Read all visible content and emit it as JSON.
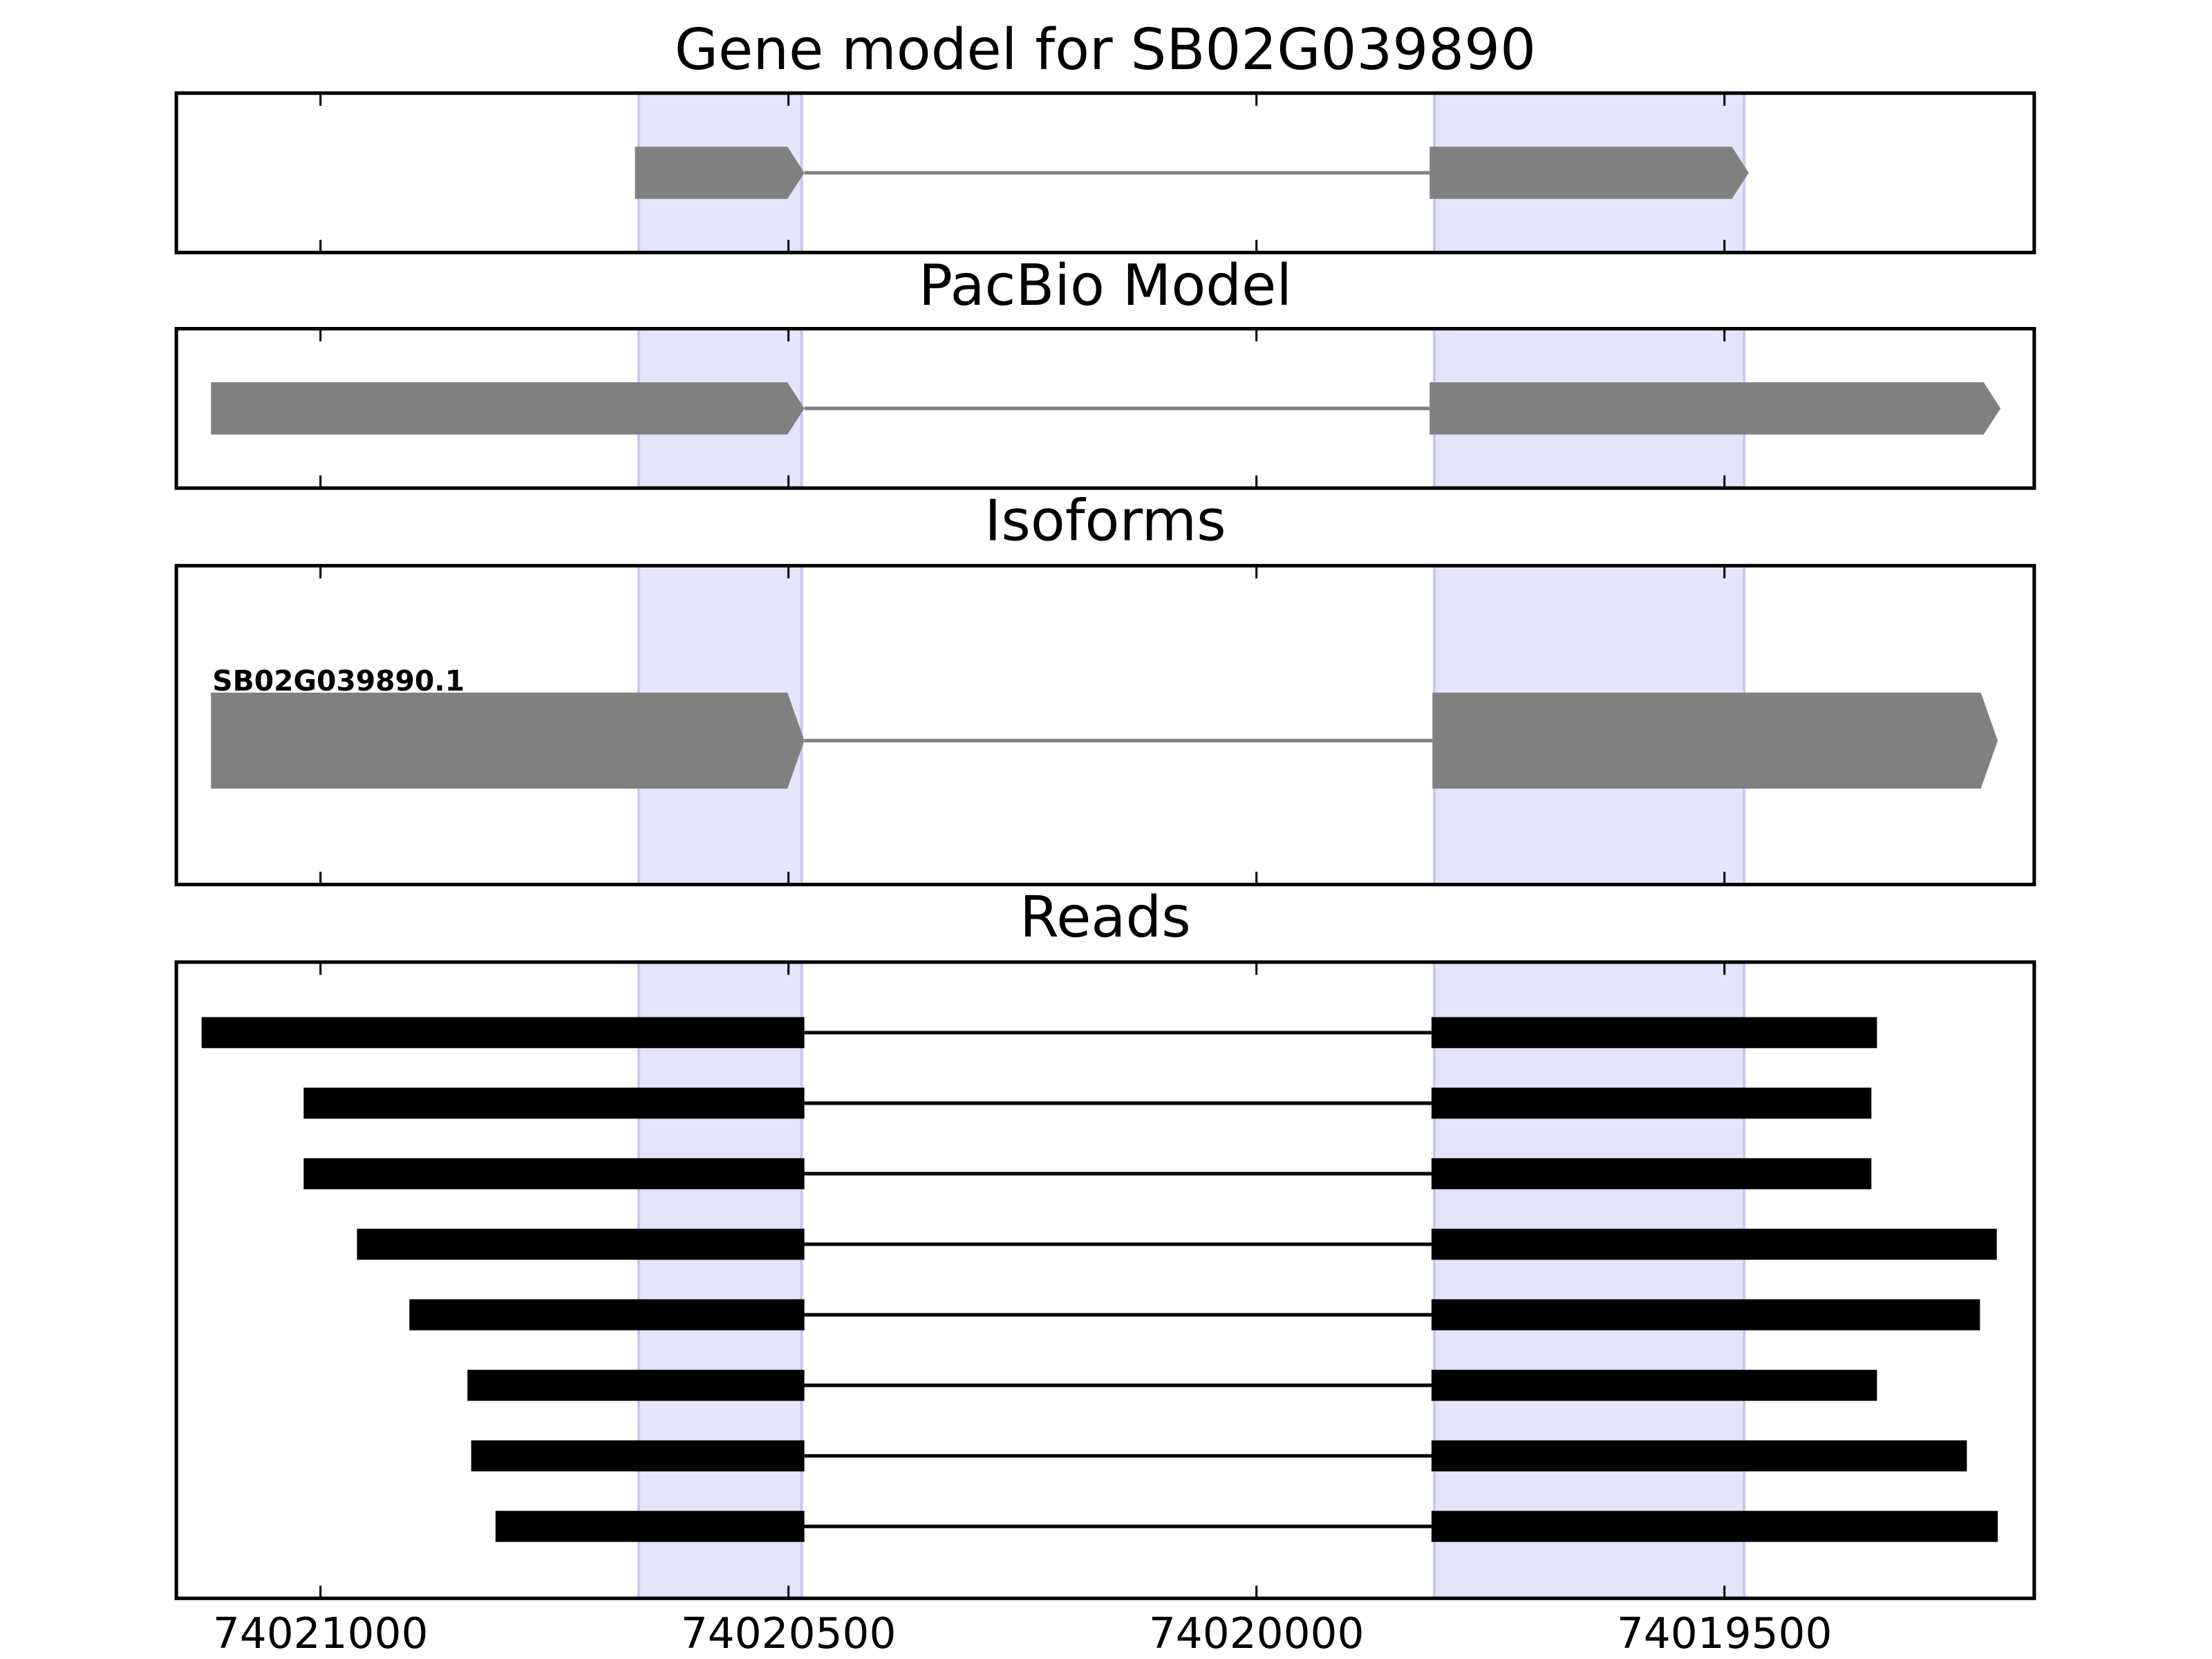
{
  "chart_data": [
    {
      "type": "gene",
      "title": "Gene model for SB02G039890",
      "xlim": [
        74021154,
        74019169
      ],
      "xticks": [
        74021000,
        74020500,
        74020000,
        74019500
      ],
      "color": "#808080",
      "highlight_color": "#e4e4fc",
      "highlights": [
        [
          74020660,
          74020486
        ],
        [
          74019810,
          74019479
        ]
      ],
      "exons": [
        [
          74020664,
          74020483
        ],
        [
          74019815,
          74019474
        ]
      ]
    },
    {
      "type": "gene",
      "title": "PacBio Model",
      "xlim": [
        74021154,
        74019169
      ],
      "xticks": [
        74021000,
        74020500,
        74020000,
        74019500
      ],
      "color": "#808080",
      "highlight_color": "#e4e4fc",
      "highlights": [
        [
          74020660,
          74020486
        ],
        [
          74019810,
          74019479
        ]
      ],
      "exons": [
        [
          74021117,
          74020483
        ],
        [
          74019815,
          74019205
        ]
      ]
    },
    {
      "type": "gene",
      "title": "Isoforms",
      "label": "SB02G039890.1",
      "xlim": [
        74021154,
        74019169
      ],
      "xticks": [
        74021000,
        74020500,
        74020000,
        74019500
      ],
      "color": "#808080",
      "highlight_color": "#e4e4fc",
      "highlights": [
        [
          74020660,
          74020486
        ],
        [
          74019810,
          74019479
        ]
      ],
      "exons": [
        [
          74021117,
          74020483
        ],
        [
          74019812,
          74019208
        ]
      ]
    },
    {
      "type": "reads",
      "title": "Reads",
      "xlim": [
        74021154,
        74019169
      ],
      "xticks": [
        74021000,
        74020500,
        74020000,
        74019500
      ],
      "color": "#000000",
      "highlight_color": "#e4e4fc",
      "highlights": [
        [
          74020660,
          74020486
        ],
        [
          74019810,
          74019479
        ]
      ],
      "reads": [
        [
          [
            74021127,
            74020483
          ],
          [
            74019813,
            74019337
          ]
        ],
        [
          [
            74021018,
            74020483
          ],
          [
            74019813,
            74019343
          ]
        ],
        [
          [
            74021018,
            74020483
          ],
          [
            74019813,
            74019343
          ]
        ],
        [
          [
            74020961,
            74020483
          ],
          [
            74019813,
            74019209
          ]
        ],
        [
          [
            74020905,
            74020483
          ],
          [
            74019813,
            74019227
          ]
        ],
        [
          [
            74020843,
            74020483
          ],
          [
            74019813,
            74019337
          ]
        ],
        [
          [
            74020839,
            74020483
          ],
          [
            74019813,
            74019241
          ]
        ],
        [
          [
            74020813,
            74020483
          ],
          [
            74019813,
            74019208
          ]
        ]
      ]
    }
  ]
}
